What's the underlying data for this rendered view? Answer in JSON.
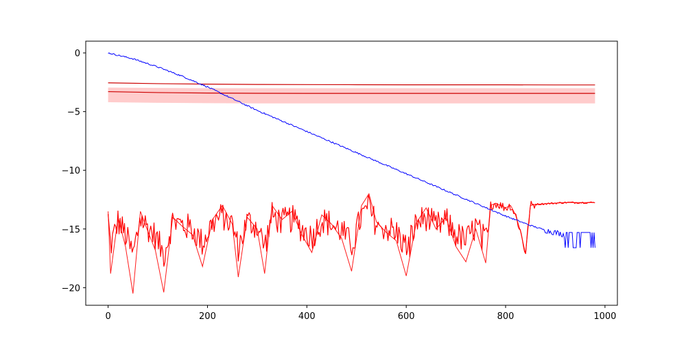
{
  "chart_data": {
    "type": "line",
    "title": "",
    "xlabel": "",
    "ylabel": "",
    "xlim": [
      -45,
      1025
    ],
    "ylim": [
      -21.5,
      1.0
    ],
    "x_ticks": [
      0,
      200,
      400,
      600,
      800,
      1000
    ],
    "y_ticks": [
      0,
      -5,
      -10,
      -15,
      -20
    ],
    "x_tick_labels": [
      "0",
      "200",
      "400",
      "600",
      "800",
      "1000"
    ],
    "y_tick_labels": [
      "0",
      "−5",
      "−10",
      "−15",
      "−20"
    ],
    "grid": false,
    "legend": "none",
    "colors": {
      "blue_series": "#0000ff",
      "red_series": "#ff0000",
      "band_fill": "#ff0000",
      "band_line": "#cc0000"
    },
    "series": [
      {
        "style": "blue-line",
        "x": [
          0,
          50,
          100,
          150,
          200,
          250,
          300,
          350,
          400,
          450,
          500,
          550,
          600,
          650,
          700,
          750,
          800,
          850,
          880,
          900,
          920,
          940,
          960,
          980
        ],
        "y": [
          0.0,
          -0.5,
          -1.2,
          -2.0,
          -2.9,
          -3.9,
          -4.9,
          -5.8,
          -6.7,
          -7.6,
          -8.5,
          -9.4,
          -10.3,
          -11.2,
          -12.1,
          -13.0,
          -13.9,
          -14.7,
          -15.1,
          -15.3,
          -15.5,
          -15.7,
          -15.9,
          -16.0
        ],
        "noise_end_range": [
          -16.6,
          -15.3
        ]
      },
      {
        "style": "red-band-upper",
        "x": [
          0,
          100,
          200,
          300,
          400,
          500,
          600,
          700,
          800,
          900,
          980
        ],
        "y": [
          -2.55,
          -2.62,
          -2.66,
          -2.69,
          -2.7,
          -2.71,
          -2.72,
          -2.72,
          -2.72,
          -2.73,
          -2.73
        ]
      },
      {
        "style": "red-band-mid",
        "x": [
          0,
          100,
          200,
          300,
          400,
          500,
          600,
          700,
          800,
          900,
          980
        ],
        "y": [
          -3.3,
          -3.38,
          -3.42,
          -3.44,
          -3.45,
          -3.45,
          -3.45,
          -3.45,
          -3.45,
          -3.45,
          -3.45
        ],
        "band_lower": [
          -4.2,
          -4.25,
          -4.28,
          -4.3,
          -4.3,
          -4.3,
          -4.3,
          -4.3,
          -4.3,
          -4.3,
          -4.3
        ],
        "band_upper": [
          -2.95,
          -2.98,
          -3.0,
          -3.0,
          -3.0,
          -3.0,
          -3.0,
          -3.0,
          -3.0,
          -3.0,
          -3.0
        ]
      },
      {
        "style": "red-noisy",
        "x": [
          0,
          5,
          20,
          35,
          50,
          65,
          80,
          95,
          112,
          130,
          150,
          170,
          190,
          210,
          230,
          250,
          262,
          280,
          300,
          315,
          330,
          350,
          370,
          390,
          410,
          430,
          450,
          470,
          490,
          510,
          525,
          540,
          560,
          580,
          600,
          620,
          640,
          660,
          680,
          700,
          720,
          740,
          760,
          770,
          780,
          800,
          810,
          820,
          830,
          840,
          845,
          850,
          860,
          880,
          900,
          920,
          940,
          960,
          980
        ],
        "y": [
          -13.5,
          -18.8,
          -14.0,
          -16.5,
          -20.5,
          -13.5,
          -15.2,
          -16.8,
          -20.4,
          -14.0,
          -14.8,
          -15.5,
          -18.2,
          -14.2,
          -13.0,
          -14.6,
          -19.1,
          -14.0,
          -15.0,
          -18.8,
          -13.0,
          -14.2,
          -13.5,
          -15.5,
          -17.0,
          -13.8,
          -14.6,
          -15.8,
          -18.6,
          -13.0,
          -12.0,
          -14.4,
          -15.3,
          -16.0,
          -19.0,
          -14.5,
          -13.2,
          -15.0,
          -14.0,
          -16.5,
          -17.8,
          -15.0,
          -17.9,
          -13.0,
          -12.8,
          -13.2,
          -13.0,
          -13.8,
          -15.2,
          -17.1,
          -15.0,
          -13.0,
          -12.9,
          -12.85,
          -12.8,
          -12.75,
          -12.75,
          -12.75,
          -12.75
        ],
        "noise_range_until_760": [
          -16.8,
          -12.4
        ]
      }
    ]
  }
}
